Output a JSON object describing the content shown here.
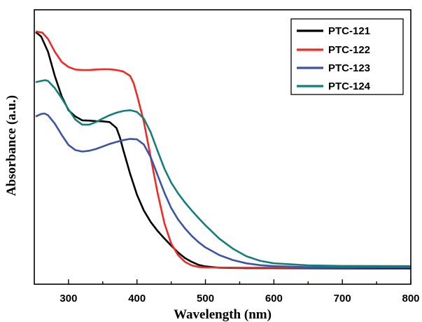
{
  "chart_data": {
    "type": "line",
    "xlabel": "Wavelength (nm)",
    "ylabel": "Absorbance (a.u.)",
    "xlim": [
      250,
      800
    ],
    "ylim": [
      0,
      1.08
    ],
    "x_ticks": [
      300,
      400,
      500,
      600,
      700,
      800
    ],
    "y_ticks": [],
    "grid": false,
    "legend_position": "top-right",
    "series": [
      {
        "name": "PTC-121",
        "color": "#000000",
        "points": [
          [
            252,
            0.992
          ],
          [
            260,
            0.975
          ],
          [
            270,
            0.915
          ],
          [
            280,
            0.82
          ],
          [
            290,
            0.74
          ],
          [
            300,
            0.685
          ],
          [
            310,
            0.66
          ],
          [
            320,
            0.645
          ],
          [
            330,
            0.644
          ],
          [
            340,
            0.642
          ],
          [
            350,
            0.641
          ],
          [
            360,
            0.638
          ],
          [
            370,
            0.615
          ],
          [
            375,
            0.578
          ],
          [
            380,
            0.528
          ],
          [
            390,
            0.435
          ],
          [
            400,
            0.352
          ],
          [
            410,
            0.29
          ],
          [
            420,
            0.245
          ],
          [
            430,
            0.21
          ],
          [
            440,
            0.18
          ],
          [
            450,
            0.152
          ],
          [
            460,
            0.125
          ],
          [
            470,
            0.103
          ],
          [
            480,
            0.088
          ],
          [
            490,
            0.076
          ],
          [
            500,
            0.07
          ],
          [
            520,
            0.065
          ],
          [
            560,
            0.063
          ],
          [
            600,
            0.063
          ],
          [
            700,
            0.062
          ],
          [
            800,
            0.062
          ]
        ]
      },
      {
        "name": "PTC-122",
        "color": "#ee2a24",
        "points": [
          [
            252,
            0.995
          ],
          [
            262,
            0.99
          ],
          [
            270,
            0.965
          ],
          [
            280,
            0.915
          ],
          [
            290,
            0.875
          ],
          [
            300,
            0.855
          ],
          [
            310,
            0.845
          ],
          [
            320,
            0.843
          ],
          [
            330,
            0.843
          ],
          [
            340,
            0.845
          ],
          [
            350,
            0.846
          ],
          [
            360,
            0.846
          ],
          [
            370,
            0.843
          ],
          [
            380,
            0.837
          ],
          [
            390,
            0.82
          ],
          [
            395,
            0.792
          ],
          [
            400,
            0.745
          ],
          [
            410,
            0.64
          ],
          [
            420,
            0.5
          ],
          [
            430,
            0.36
          ],
          [
            440,
            0.24
          ],
          [
            450,
            0.16
          ],
          [
            460,
            0.115
          ],
          [
            470,
            0.088
          ],
          [
            480,
            0.074
          ],
          [
            490,
            0.068
          ],
          [
            500,
            0.066
          ],
          [
            550,
            0.065
          ],
          [
            600,
            0.065
          ],
          [
            700,
            0.065
          ],
          [
            800,
            0.066
          ]
        ]
      },
      {
        "name": "PTC-123",
        "color": "#3a55a6",
        "points": [
          [
            252,
            0.66
          ],
          [
            260,
            0.67
          ],
          [
            265,
            0.672
          ],
          [
            270,
            0.665
          ],
          [
            280,
            0.632
          ],
          [
            290,
            0.588
          ],
          [
            300,
            0.548
          ],
          [
            310,
            0.528
          ],
          [
            320,
            0.522
          ],
          [
            330,
            0.525
          ],
          [
            340,
            0.532
          ],
          [
            350,
            0.542
          ],
          [
            360,
            0.552
          ],
          [
            370,
            0.56
          ],
          [
            380,
            0.567
          ],
          [
            390,
            0.572
          ],
          [
            400,
            0.57
          ],
          [
            410,
            0.55
          ],
          [
            420,
            0.5
          ],
          [
            430,
            0.43
          ],
          [
            440,
            0.36
          ],
          [
            450,
            0.3
          ],
          [
            460,
            0.255
          ],
          [
            470,
            0.22
          ],
          [
            480,
            0.19
          ],
          [
            490,
            0.165
          ],
          [
            500,
            0.145
          ],
          [
            520,
            0.115
          ],
          [
            540,
            0.095
          ],
          [
            560,
            0.082
          ],
          [
            580,
            0.075
          ],
          [
            600,
            0.071
          ],
          [
            650,
            0.067
          ],
          [
            700,
            0.066
          ],
          [
            800,
            0.066
          ]
        ]
      },
      {
        "name": "PTC-124",
        "color": "#137f7a",
        "points": [
          [
            252,
            0.795
          ],
          [
            260,
            0.8
          ],
          [
            266,
            0.803
          ],
          [
            270,
            0.8
          ],
          [
            280,
            0.772
          ],
          [
            290,
            0.732
          ],
          [
            300,
            0.688
          ],
          [
            310,
            0.648
          ],
          [
            320,
            0.628
          ],
          [
            330,
            0.628
          ],
          [
            340,
            0.638
          ],
          [
            350,
            0.652
          ],
          [
            360,
            0.665
          ],
          [
            370,
            0.675
          ],
          [
            380,
            0.682
          ],
          [
            390,
            0.685
          ],
          [
            400,
            0.678
          ],
          [
            410,
            0.652
          ],
          [
            420,
            0.598
          ],
          [
            430,
            0.525
          ],
          [
            440,
            0.455
          ],
          [
            450,
            0.4
          ],
          [
            460,
            0.358
          ],
          [
            470,
            0.322
          ],
          [
            480,
            0.29
          ],
          [
            490,
            0.26
          ],
          [
            500,
            0.232
          ],
          [
            520,
            0.18
          ],
          [
            540,
            0.14
          ],
          [
            560,
            0.11
          ],
          [
            580,
            0.092
          ],
          [
            600,
            0.082
          ],
          [
            650,
            0.074
          ],
          [
            700,
            0.072
          ],
          [
            800,
            0.071
          ]
        ]
      }
    ]
  }
}
